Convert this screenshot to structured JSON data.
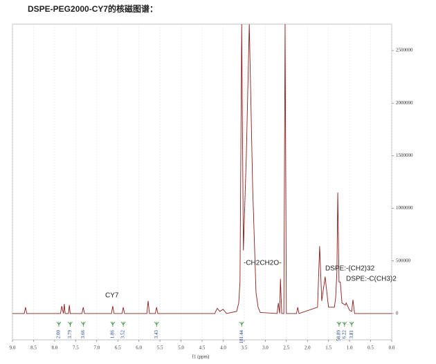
{
  "chart_data": {
    "type": "line",
    "title": "DSPE-PEG2000-CY7的核磁图谱：",
    "xlabel": "f1 (ppm)",
    "annotations": [
      "CY7",
      "-CH2CH2O-",
      "DSPE:-(CH2)32",
      "DSPE:-C(CH3)2"
    ],
    "x": [
      9.0,
      8.72,
      8.69,
      8.66,
      7.9,
      7.86,
      7.83,
      7.79,
      7.77,
      7.75,
      7.67,
      7.65,
      7.63,
      7.35,
      7.32,
      7.29,
      6.65,
      6.62,
      6.59,
      6.4,
      6.37,
      6.34,
      5.81,
      5.78,
      5.75,
      5.61,
      5.58,
      5.55,
      4.2,
      4.14,
      4.08,
      4.0,
      3.92,
      3.68,
      3.63,
      3.6,
      3.56,
      3.52,
      3.45,
      3.38,
      3.3,
      3.22,
      3.17,
      3.12,
      2.72,
      2.69,
      2.66,
      2.64,
      2.61,
      2.56,
      2.53,
      2.5,
      2.26,
      2.23,
      2.2,
      1.76,
      1.71,
      1.66,
      1.58,
      1.5,
      1.36,
      1.33,
      1.3,
      1.28,
      1.25,
      1.22,
      1.18,
      1.1,
      1.08,
      1.0,
      0.95,
      0.92,
      0.88,
      0.5,
      0.0
    ],
    "series": [
      {
        "color": "#8b1a1a",
        "values": [
          0,
          0,
          60000,
          0,
          0,
          0,
          70000,
          0,
          90000,
          0,
          0,
          80000,
          0,
          0,
          60000,
          0,
          0,
          70000,
          0,
          0,
          60000,
          0,
          0,
          120000,
          0,
          0,
          60000,
          0,
          0,
          50000,
          20000,
          40000,
          0,
          20000,
          100000,
          300000,
          2750000,
          600000,
          1500000,
          2750000,
          1200000,
          200000,
          60000,
          10000,
          0,
          100000,
          0,
          330000,
          0,
          0,
          2750000,
          0,
          0,
          60000,
          0,
          60000,
          640000,
          120000,
          350000,
          60000,
          60000,
          150000,
          400000,
          1150000,
          300000,
          300000,
          100000,
          80000,
          100000,
          30000,
          20000,
          130000,
          0,
          0,
          0
        ]
      }
    ],
    "integrals": {
      "color": "#2e8b2e",
      "x": [
        7.9,
        7.63,
        7.32,
        6.62,
        6.37,
        5.58,
        3.56,
        1.25,
        1.12,
        0.95
      ],
      "values": [
        2,
        3.79,
        3.66,
        1.86,
        3.52,
        3.43,
        181.44,
        58.89,
        6.22,
        3.81
      ],
      "value_labels": [
        "2.00",
        "3.79",
        "3.66",
        "1.86",
        "3.52",
        "3.43",
        "181.44",
        "58.89",
        "6.22",
        "3.81"
      ]
    },
    "xlim": [
      9.0,
      0.0
    ],
    "xticks": [
      {
        "value": 9,
        "label": "9.0"
      },
      8.5,
      {
        "value": 8,
        "label": "8.0"
      },
      7.5,
      {
        "value": 7,
        "label": "7.0"
      },
      6.5,
      {
        "value": 6,
        "label": "6.0"
      },
      5.5,
      {
        "value": 5,
        "label": "5.0"
      },
      4.5,
      {
        "value": 4,
        "label": "4.0"
      },
      3.5,
      {
        "value": 3,
        "label": "3.0"
      },
      2.5,
      {
        "value": 2,
        "label": "2.0"
      },
      1.5,
      {
        "value": 1,
        "label": "1.0"
      },
      0.5,
      {
        "value": 0,
        "label": "0.0"
      }
    ],
    "y2lim": [
      -250000,
      2750000
    ],
    "y2ticks": [
      0,
      500000,
      1000000,
      1500000,
      2000000,
      2500000
    ],
    "grid": true
  }
}
